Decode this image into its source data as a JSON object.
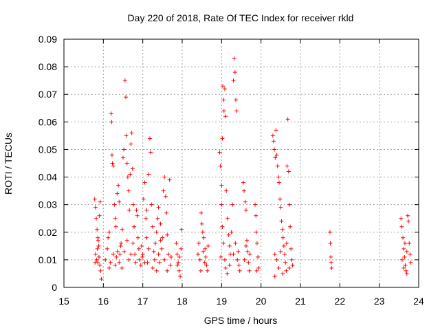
{
  "chart_data": {
    "type": "scatter",
    "title": "Day 220 of 2018, Rate Of TEC Index for receiver rkld",
    "xlabel": "GPS time / hours",
    "ylabel": "ROTI / TECUs",
    "xlim": [
      15,
      24
    ],
    "ylim": [
      0,
      0.09
    ],
    "xticks": [
      "15",
      "16",
      "17",
      "18",
      "19",
      "20",
      "21",
      "22",
      "23",
      "24"
    ],
    "yticks": [
      "0",
      "0.01",
      "0.02",
      "0.03",
      "0.04",
      "0.05",
      "0.06",
      "0.07",
      "0.08",
      "0.09"
    ],
    "grid": true,
    "legend": "none",
    "marker": "+",
    "color": "#ff0000",
    "series": [
      {
        "points": [
          [
            15.78,
            0.032
          ],
          [
            15.8,
            0.029
          ],
          [
            15.82,
            0.025
          ],
          [
            15.84,
            0.021
          ],
          [
            15.86,
            0.018
          ],
          [
            15.88,
            0.015
          ],
          [
            15.8,
            0.012
          ],
          [
            15.83,
            0.01
          ],
          [
            15.86,
            0.009
          ],
          [
            15.89,
            0.011
          ],
          [
            15.91,
            0.008
          ],
          [
            15.93,
            0.006
          ],
          [
            15.95,
            0.003
          ],
          [
            15.92,
            0.031
          ],
          [
            15.9,
            0.026
          ],
          [
            15.85,
            0.014
          ],
          [
            15.87,
            0.017
          ],
          [
            15.79,
            0.009
          ],
          [
            16.05,
            0.01
          ],
          [
            16.1,
            0.014
          ],
          [
            16.12,
            0.018
          ],
          [
            16.15,
            0.02
          ],
          [
            16.18,
            0.009
          ],
          [
            16.2,
            0.063
          ],
          [
            16.21,
            0.06
          ],
          [
            16.22,
            0.048
          ],
          [
            16.23,
            0.045
          ],
          [
            16.25,
            0.044
          ],
          [
            16.28,
            0.03
          ],
          [
            16.3,
            0.025
          ],
          [
            16.32,
            0.022
          ],
          [
            16.35,
            0.034
          ],
          [
            16.38,
            0.037
          ],
          [
            16.4,
            0.031
          ],
          [
            16.42,
            0.012
          ],
          [
            16.45,
            0.016
          ],
          [
            16.48,
            0.021
          ],
          [
            16.5,
            0.047
          ],
          [
            16.52,
            0.05
          ],
          [
            16.55,
            0.075
          ],
          [
            16.57,
            0.069
          ],
          [
            16.58,
            0.055
          ],
          [
            16.6,
            0.045
          ],
          [
            16.62,
            0.04
          ],
          [
            16.64,
            0.035
          ],
          [
            16.66,
            0.028
          ],
          [
            16.68,
            0.041
          ],
          [
            16.7,
            0.052
          ],
          [
            16.72,
            0.056
          ],
          [
            16.74,
            0.043
          ],
          [
            16.76,
            0.03
          ],
          [
            16.78,
            0.022
          ],
          [
            16.8,
            0.012
          ],
          [
            16.82,
            0.009
          ],
          [
            16.84,
            0.028
          ],
          [
            16.86,
            0.026
          ],
          [
            16.88,
            0.018
          ],
          [
            16.9,
            0.014
          ],
          [
            16.92,
            0.01
          ],
          [
            16.95,
            0.008
          ],
          [
            16.97,
            0.015
          ],
          [
            16.99,
            0.011
          ],
          [
            16.3,
            0.008
          ],
          [
            16.33,
            0.011
          ],
          [
            16.36,
            0.013
          ],
          [
            16.4,
            0.009
          ],
          [
            16.44,
            0.015
          ],
          [
            16.47,
            0.007
          ],
          [
            16.53,
            0.013
          ],
          [
            16.6,
            0.017
          ],
          [
            16.65,
            0.01
          ],
          [
            16.7,
            0.012
          ],
          [
            16.75,
            0.016
          ],
          [
            16.25,
            0.012
          ],
          [
            16.15,
            0.007
          ],
          [
            17.0,
            0.012
          ],
          [
            17.02,
            0.032
          ],
          [
            17.05,
            0.038
          ],
          [
            17.08,
            0.025
          ],
          [
            17.1,
            0.018
          ],
          [
            17.12,
            0.009
          ],
          [
            17.15,
            0.041
          ],
          [
            17.18,
            0.054
          ],
          [
            17.2,
            0.049
          ],
          [
            17.22,
            0.03
          ],
          [
            17.25,
            0.022
          ],
          [
            17.28,
            0.013
          ],
          [
            17.3,
            0.01
          ],
          [
            17.32,
            0.016
          ],
          [
            17.35,
            0.02
          ],
          [
            17.38,
            0.025
          ],
          [
            17.4,
            0.012
          ],
          [
            17.42,
            0.009
          ],
          [
            17.45,
            0.023
          ],
          [
            17.48,
            0.014
          ],
          [
            17.5,
            0.018
          ],
          [
            17.52,
            0.035
          ],
          [
            17.55,
            0.04
          ],
          [
            17.58,
            0.033
          ],
          [
            17.6,
            0.027
          ],
          [
            17.62,
            0.019
          ],
          [
            17.65,
            0.012
          ],
          [
            17.68,
            0.039
          ],
          [
            17.7,
            0.008
          ],
          [
            17.72,
            0.011
          ],
          [
            17.25,
            0.007
          ],
          [
            17.35,
            0.006
          ],
          [
            17.05,
            0.009
          ],
          [
            17.15,
            0.014
          ],
          [
            17.45,
            0.017
          ],
          [
            17.55,
            0.01
          ],
          [
            17.62,
            0.006
          ],
          [
            17.1,
            0.028
          ],
          [
            17.4,
            0.029
          ],
          [
            17.85,
            0.016
          ],
          [
            17.87,
            0.012
          ],
          [
            17.9,
            0.009
          ],
          [
            17.92,
            0.006
          ],
          [
            17.95,
            0.004
          ],
          [
            17.97,
            0.014
          ],
          [
            17.98,
            0.021
          ],
          [
            17.93,
            0.011
          ],
          [
            17.88,
            0.008
          ],
          [
            18.4,
            0.012
          ],
          [
            18.42,
            0.016
          ],
          [
            18.45,
            0.01
          ],
          [
            18.48,
            0.027
          ],
          [
            18.5,
            0.023
          ],
          [
            18.52,
            0.02
          ],
          [
            18.55,
            0.018
          ],
          [
            18.58,
            0.014
          ],
          [
            18.6,
            0.011
          ],
          [
            18.62,
            0.008
          ],
          [
            18.64,
            0.006
          ],
          [
            18.66,
            0.015
          ],
          [
            18.47,
            0.006
          ],
          [
            18.53,
            0.013
          ],
          [
            18.57,
            0.009
          ],
          [
            18.95,
            0.049
          ],
          [
            18.97,
            0.044
          ],
          [
            19.0,
            0.037
          ],
          [
            19.02,
            0.054
          ],
          [
            19.03,
            0.073
          ],
          [
            19.05,
            0.068
          ],
          [
            19.06,
            0.064
          ],
          [
            19.08,
            0.072
          ],
          [
            19.1,
            0.062
          ],
          [
            19.12,
            0.035
          ],
          [
            19.15,
            0.025
          ],
          [
            19.18,
            0.019
          ],
          [
            19.2,
            0.015
          ],
          [
            19.22,
            0.012
          ],
          [
            19.25,
            0.02
          ],
          [
            19.28,
            0.03
          ],
          [
            19.3,
            0.075
          ],
          [
            19.32,
            0.083
          ],
          [
            19.34,
            0.078
          ],
          [
            19.36,
            0.068
          ],
          [
            19.38,
            0.064
          ],
          [
            19.4,
            0.01
          ],
          [
            19.42,
            0.013
          ],
          [
            19.44,
            0.008
          ],
          [
            19.46,
            0.006
          ],
          [
            19.0,
            0.03
          ],
          [
            19.02,
            0.022
          ],
          [
            19.05,
            0.016
          ],
          [
            19.08,
            0.01
          ],
          [
            19.1,
            0.007
          ],
          [
            19.14,
            0.005
          ],
          [
            18.98,
            0.011
          ],
          [
            19.2,
            0.008
          ],
          [
            19.3,
            0.012
          ],
          [
            19.35,
            0.016
          ],
          [
            19.55,
            0.038
          ],
          [
            19.57,
            0.035
          ],
          [
            19.6,
            0.031
          ],
          [
            19.62,
            0.028
          ],
          [
            19.64,
            0.017
          ],
          [
            19.66,
            0.013
          ],
          [
            19.68,
            0.009
          ],
          [
            19.7,
            0.006
          ],
          [
            19.72,
            0.012
          ],
          [
            19.58,
            0.01
          ],
          [
            19.62,
            0.015
          ],
          [
            19.85,
            0.03
          ],
          [
            19.87,
            0.026
          ],
          [
            19.88,
            0.02
          ],
          [
            19.9,
            0.016
          ],
          [
            19.92,
            0.011
          ],
          [
            19.94,
            0.007
          ],
          [
            19.89,
            0.006
          ],
          [
            20.3,
            0.055
          ],
          [
            20.32,
            0.053
          ],
          [
            20.34,
            0.05
          ],
          [
            20.36,
            0.047
          ],
          [
            20.38,
            0.057
          ],
          [
            20.4,
            0.048
          ],
          [
            20.42,
            0.044
          ],
          [
            20.44,
            0.04
          ],
          [
            20.46,
            0.038
          ],
          [
            20.48,
            0.032
          ],
          [
            20.5,
            0.029
          ],
          [
            20.52,
            0.024
          ],
          [
            20.54,
            0.021
          ],
          [
            20.56,
            0.018
          ],
          [
            20.58,
            0.015
          ],
          [
            20.6,
            0.012
          ],
          [
            20.62,
            0.009
          ],
          [
            20.64,
            0.006
          ],
          [
            20.66,
            0.044
          ],
          [
            20.68,
            0.061
          ],
          [
            20.7,
            0.042
          ],
          [
            20.72,
            0.03
          ],
          [
            20.74,
            0.022
          ],
          [
            20.76,
            0.014
          ],
          [
            20.78,
            0.01
          ],
          [
            20.8,
            0.008
          ],
          [
            20.35,
            0.012
          ],
          [
            20.4,
            0.01
          ],
          [
            20.45,
            0.007
          ],
          [
            20.5,
            0.013
          ],
          [
            20.55,
            0.005
          ],
          [
            20.65,
            0.016
          ],
          [
            20.72,
            0.007
          ],
          [
            20.35,
            0.004
          ],
          [
            21.75,
            0.02
          ],
          [
            21.76,
            0.016
          ],
          [
            21.77,
            0.011
          ],
          [
            21.78,
            0.009
          ],
          [
            21.79,
            0.007
          ],
          [
            23.55,
            0.025
          ],
          [
            23.57,
            0.022
          ],
          [
            23.6,
            0.018
          ],
          [
            23.62,
            0.014
          ],
          [
            23.64,
            0.011
          ],
          [
            23.66,
            0.008
          ],
          [
            23.68,
            0.006
          ],
          [
            23.7,
            0.005
          ],
          [
            23.72,
            0.026
          ],
          [
            23.74,
            0.024
          ],
          [
            23.76,
            0.016
          ],
          [
            23.78,
            0.012
          ],
          [
            23.8,
            0.009
          ],
          [
            23.58,
            0.01
          ],
          [
            23.62,
            0.007
          ],
          [
            23.7,
            0.013
          ],
          [
            23.65,
            0.016
          ]
        ]
      }
    ]
  }
}
